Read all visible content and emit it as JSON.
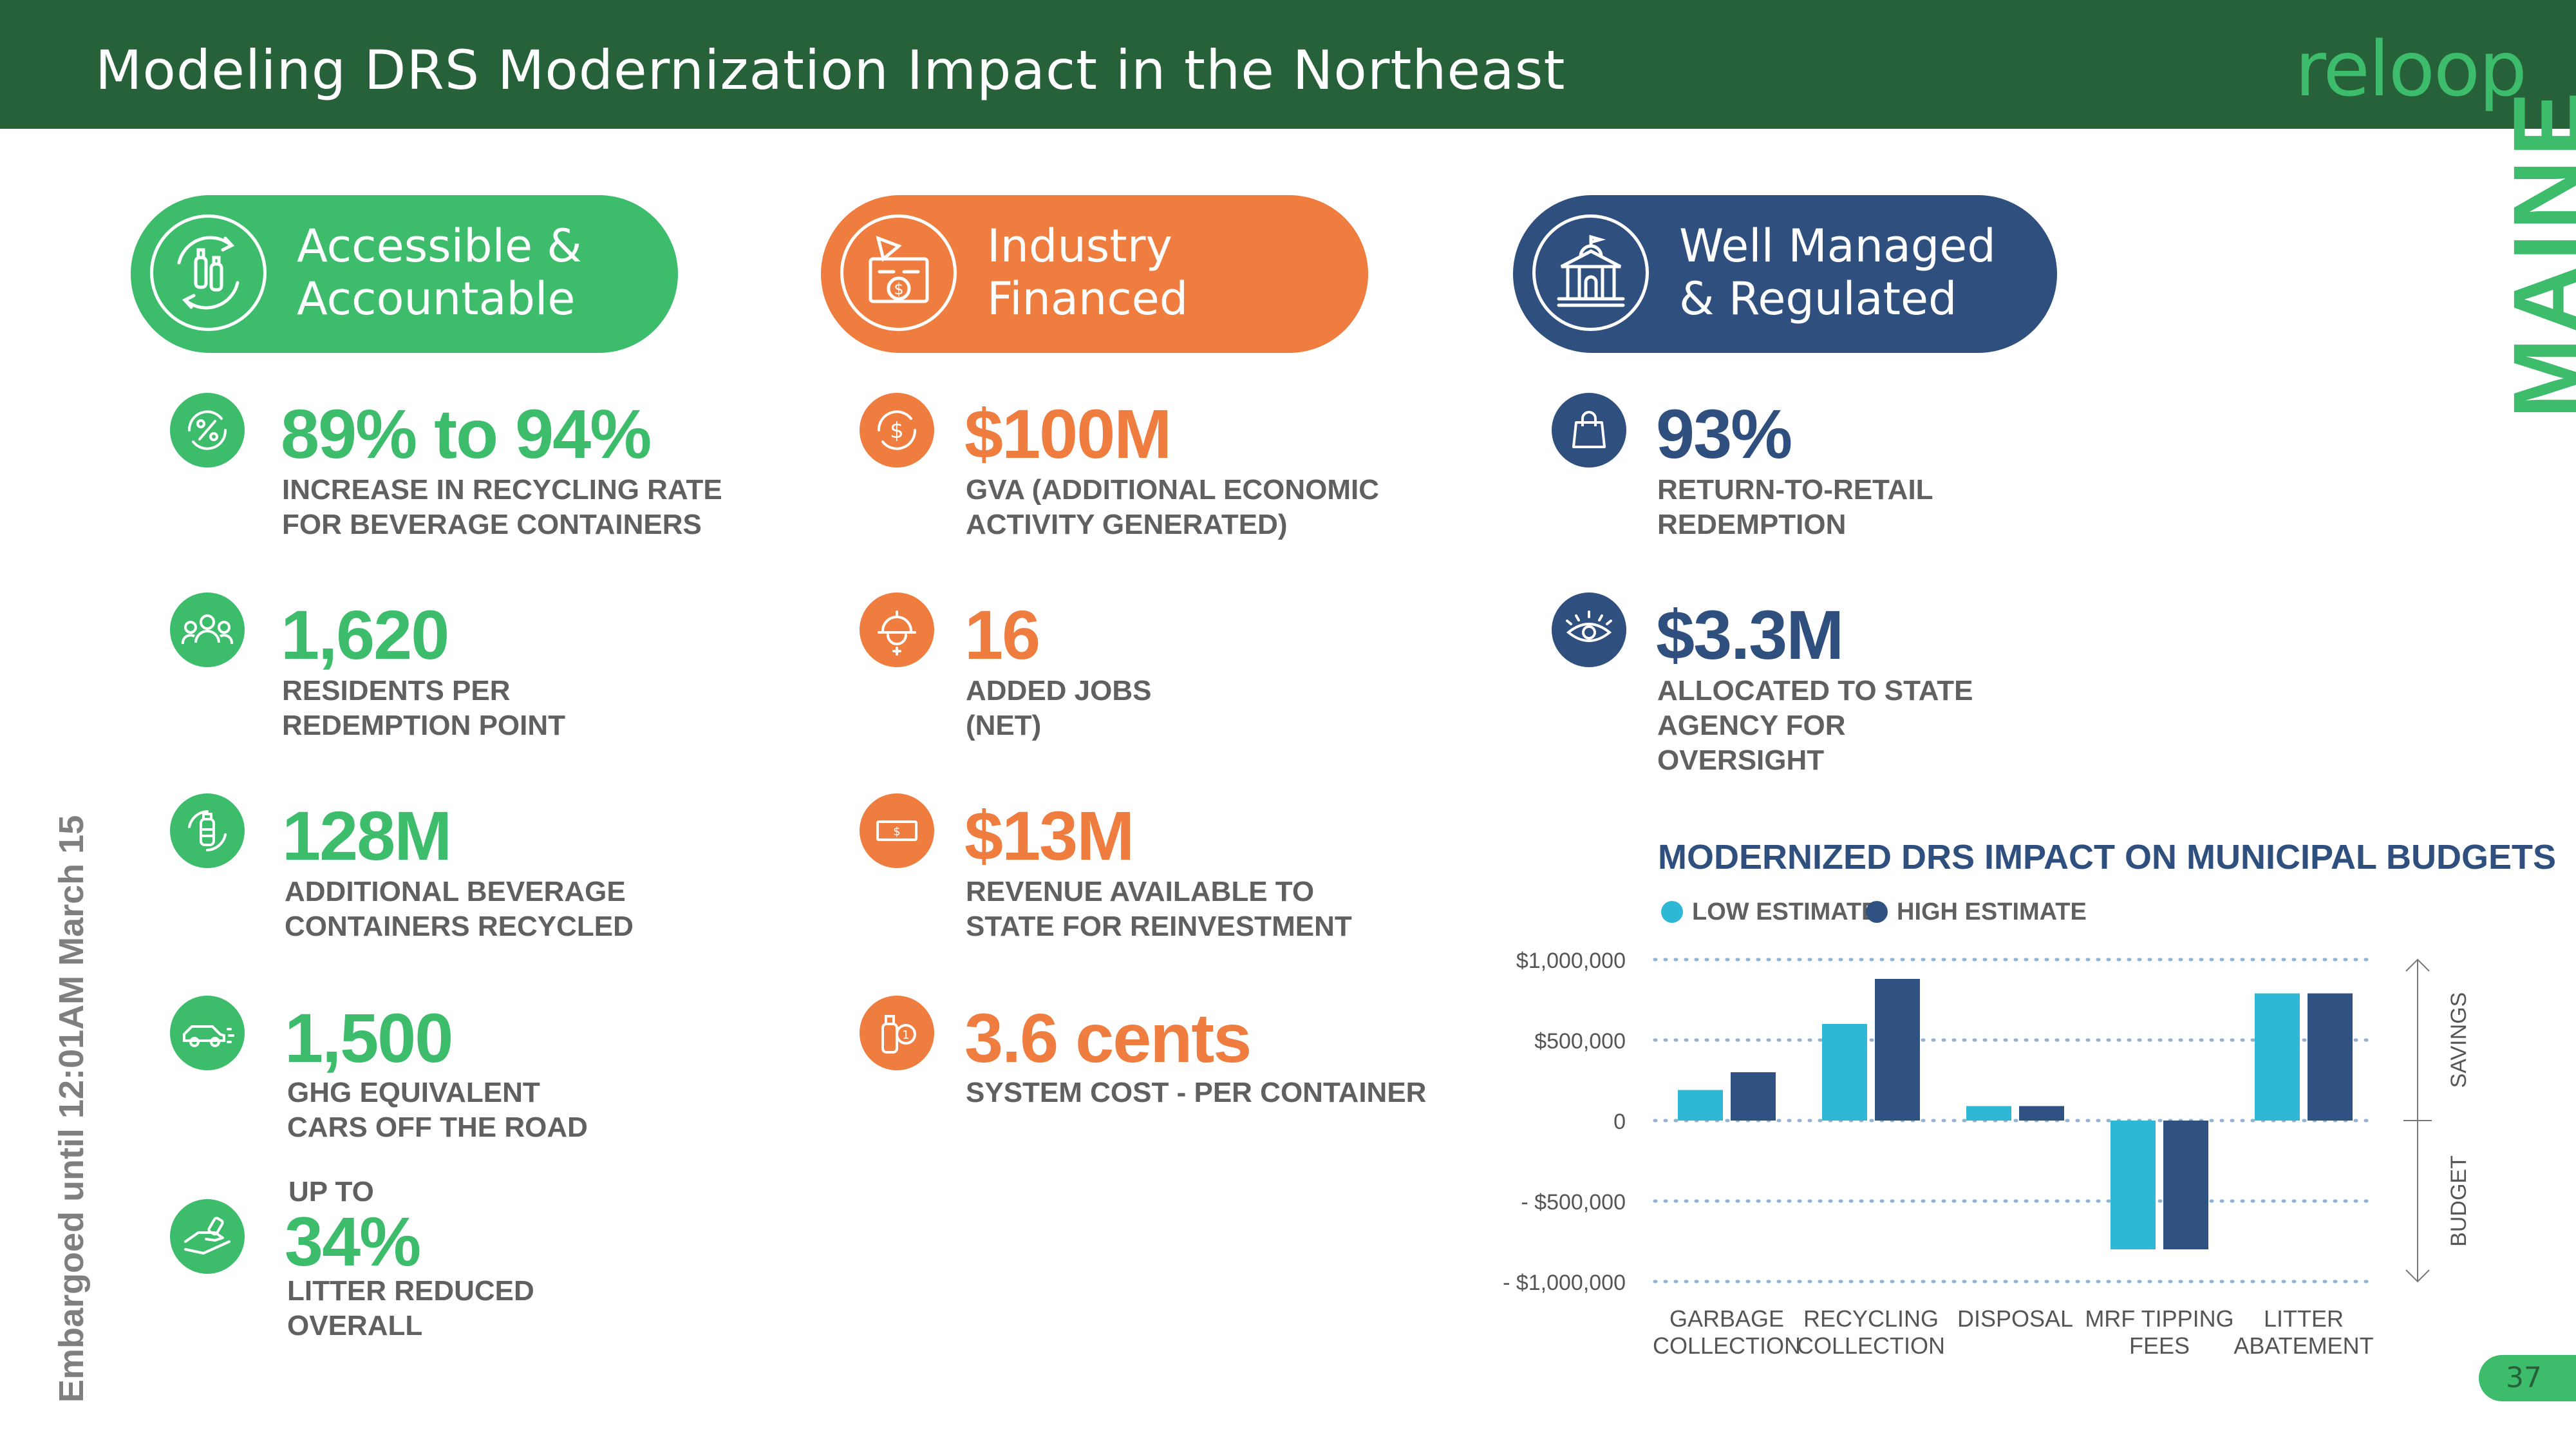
{
  "header": {
    "title": "Modeling DRS Modernization Impact in the Northeast",
    "logo": "reloop"
  },
  "side": {
    "state": "MAINE",
    "embargo": "Embargoed until 12:01AM March 15",
    "page_number": "37"
  },
  "colors": {
    "header_green": "#27613a",
    "green": "#3dbd6c",
    "orange": "#ee7d3f",
    "navy": "#2f4f7f",
    "light_blue": "#2eb8d6",
    "dark_blue": "#2f5283"
  },
  "columns": [
    {
      "heading_line1": "Accessible &",
      "heading_line2": "Accountable",
      "icon": "recycle-bottles-icon",
      "stats": [
        {
          "icon": "percent-cycle-icon",
          "value": "89% to 94%",
          "desc_line1": "INCREASE IN RECYCLING RATE",
          "desc_line2": "FOR BEVERAGE CONTAINERS"
        },
        {
          "icon": "people-icon",
          "value": "1,620",
          "desc_line1": "RESIDENTS PER",
          "desc_line2": "REDEMPTION POINT"
        },
        {
          "icon": "bottle-recycle-icon",
          "value": "128M",
          "desc_line1": "ADDITIONAL BEVERAGE",
          "desc_line2": "CONTAINERS RECYCLED"
        },
        {
          "icon": "car-icon",
          "value": "1,500",
          "desc_line1": "GHG EQUIVALENT",
          "desc_line2": "CARS OFF THE ROAD"
        },
        {
          "icon": "hand-litter-icon",
          "pre": "UP TO",
          "value": "34%",
          "desc_line1": "LITTER REDUCED",
          "desc_line2": "OVERALL"
        }
      ]
    },
    {
      "heading_line1": "Industry",
      "heading_line2": "Financed",
      "icon": "factory-money-icon",
      "stats": [
        {
          "icon": "dollar-cycle-icon",
          "value": "$100M",
          "desc_line1": "GVA (ADDITIONAL ECONOMIC",
          "desc_line2": "ACTIVITY GENERATED)"
        },
        {
          "icon": "hardhat-worker-icon",
          "value": "16",
          "desc_line1": "ADDED JOBS",
          "desc_line2": "(NET)"
        },
        {
          "icon": "banknote-icon",
          "value": "$13M",
          "desc_line1": "REVENUE AVAILABLE TO",
          "desc_line2": "STATE FOR REINVESTMENT"
        },
        {
          "icon": "bottle-coin-icon",
          "value": "3.6 cents",
          "desc_line1": "SYSTEM COST - PER CONTAINER",
          "desc_line2": ""
        }
      ]
    },
    {
      "heading_line1": "Well Managed",
      "heading_line2": "& Regulated",
      "icon": "capitol-building-icon",
      "stats": [
        {
          "icon": "shopping-bag-icon",
          "value": "93%",
          "desc_line1": "RETURN-TO-RETAIL",
          "desc_line2": "REDEMPTION"
        },
        {
          "icon": "eye-icon",
          "value": "$3.3M",
          "desc_line1": "ALLOCATED TO STATE",
          "desc_line2": "AGENCY FOR",
          "desc_line3": "OVERSIGHT"
        }
      ]
    }
  ],
  "chart_data": {
    "type": "bar",
    "title": "MODERNIZED DRS IMPACT ON MUNICIPAL BUDGETS",
    "categories": [
      [
        "GARBAGE",
        "COLLECTION"
      ],
      [
        "RECYCLING",
        "COLLECTION"
      ],
      [
        "DISPOSAL"
      ],
      [
        "MRF TIPPING",
        "FEES"
      ],
      [
        "LITTER",
        "ABATEMENT"
      ]
    ],
    "series": [
      {
        "name": "LOW ESTIMATE",
        "color": "#2eb8d6",
        "values": [
          190000,
          600000,
          90000,
          -800000,
          790000
        ]
      },
      {
        "name": "HIGH ESTIMATE",
        "color": "#2f5283",
        "values": [
          300000,
          880000,
          90000,
          -800000,
          790000
        ]
      }
    ],
    "ylim": [
      -1000000,
      1000000
    ],
    "yticks": [
      1000000,
      500000,
      0,
      -500000,
      -1000000
    ],
    "ytick_labels": [
      "$1,000,000",
      "$500,000",
      "0",
      "- $500,000",
      "- $1,000,000"
    ],
    "side_labels": {
      "positive": "SAVINGS",
      "negative": "BUDGET"
    },
    "grid": true,
    "legend": "top-left"
  }
}
